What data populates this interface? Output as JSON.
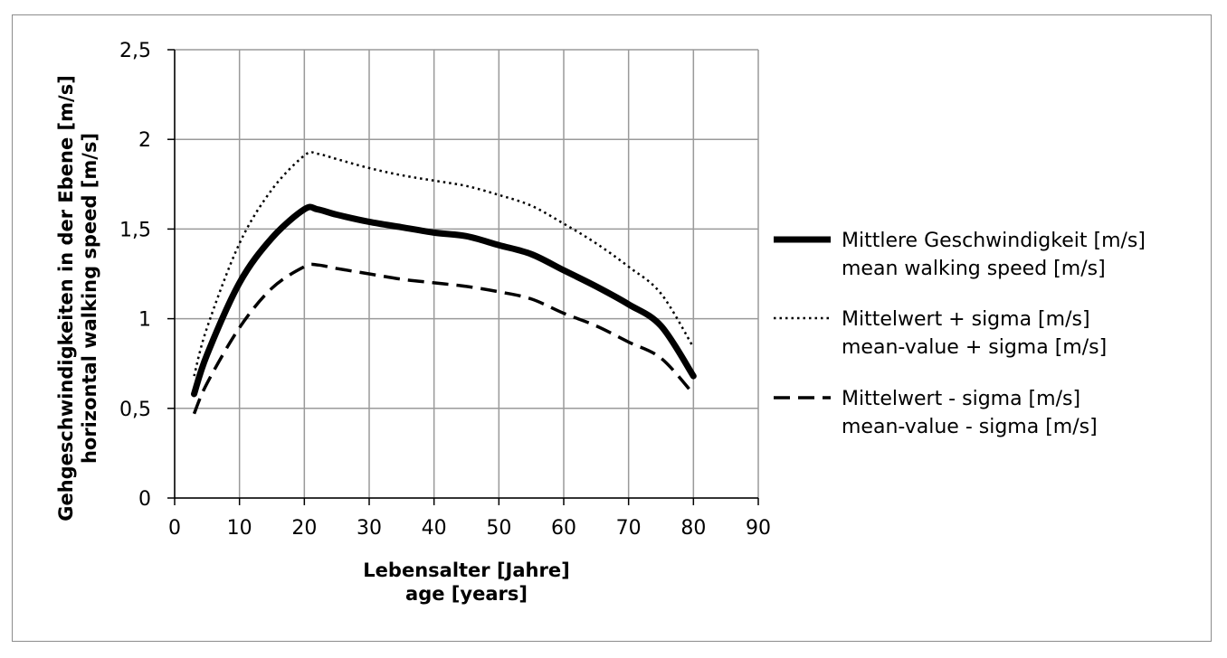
{
  "chart_data": {
    "type": "line",
    "xlabel": [
      "Lebensalter [Jahre]",
      "age [years]"
    ],
    "ylabel": [
      "Gehgeschwindigkeiten in der Ebene [m/s]",
      "horizontal walking speed [m/s]"
    ],
    "xlim": [
      0,
      90
    ],
    "ylim": [
      0,
      2.5
    ],
    "x_ticks": [
      "0",
      "10",
      "20",
      "30",
      "40",
      "50",
      "60",
      "70",
      "80",
      "90"
    ],
    "y_ticks": [
      "0",
      "0,5",
      "1",
      "1,5",
      "2",
      "2,5"
    ],
    "grid": true,
    "legend_position": "right",
    "series": [
      {
        "name": [
          "Mittlere Geschwindigkeit [m/s]",
          "mean walking speed [m/s]"
        ],
        "style": "solid",
        "color": "#000000",
        "points": [
          [
            3,
            0.58
          ],
          [
            5,
            0.8
          ],
          [
            10,
            1.2
          ],
          [
            15,
            1.45
          ],
          [
            20,
            1.61
          ],
          [
            22,
            1.61
          ],
          [
            25,
            1.58
          ],
          [
            30,
            1.54
          ],
          [
            35,
            1.51
          ],
          [
            40,
            1.48
          ],
          [
            45,
            1.46
          ],
          [
            50,
            1.41
          ],
          [
            55,
            1.36
          ],
          [
            60,
            1.27
          ],
          [
            65,
            1.18
          ],
          [
            70,
            1.08
          ],
          [
            75,
            0.96
          ],
          [
            80,
            0.68
          ]
        ]
      },
      {
        "name": [
          "Mittelwert + sigma [m/s]",
          "mean-value + sigma [m/s]"
        ],
        "style": "dotted",
        "color": "#000000",
        "points": [
          [
            3,
            0.68
          ],
          [
            5,
            0.95
          ],
          [
            10,
            1.42
          ],
          [
            15,
            1.72
          ],
          [
            20,
            1.91
          ],
          [
            22,
            1.92
          ],
          [
            25,
            1.89
          ],
          [
            30,
            1.84
          ],
          [
            35,
            1.8
          ],
          [
            40,
            1.77
          ],
          [
            45,
            1.74
          ],
          [
            50,
            1.69
          ],
          [
            55,
            1.63
          ],
          [
            60,
            1.53
          ],
          [
            65,
            1.42
          ],
          [
            70,
            1.29
          ],
          [
            75,
            1.14
          ],
          [
            80,
            0.84
          ]
        ]
      },
      {
        "name": [
          "Mittelwert - sigma [m/s]",
          "mean-value - sigma [m/s]"
        ],
        "style": "dashed",
        "color": "#000000",
        "points": [
          [
            3,
            0.47
          ],
          [
            5,
            0.64
          ],
          [
            10,
            0.95
          ],
          [
            15,
            1.17
          ],
          [
            20,
            1.29
          ],
          [
            22,
            1.3
          ],
          [
            25,
            1.28
          ],
          [
            30,
            1.25
          ],
          [
            35,
            1.22
          ],
          [
            40,
            1.2
          ],
          [
            45,
            1.18
          ],
          [
            50,
            1.15
          ],
          [
            55,
            1.11
          ],
          [
            60,
            1.03
          ],
          [
            65,
            0.96
          ],
          [
            70,
            0.87
          ],
          [
            75,
            0.78
          ],
          [
            80,
            0.58
          ]
        ]
      }
    ]
  }
}
